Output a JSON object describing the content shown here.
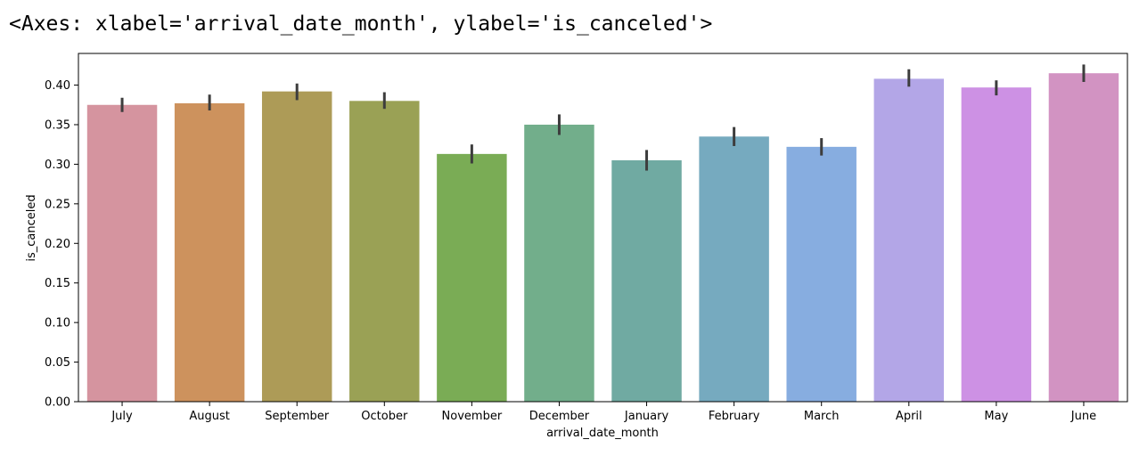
{
  "header": {
    "repr_text": "<Axes: xlabel='arrival_date_month', ylabel='is_canceled'>"
  },
  "chart_data": {
    "type": "bar",
    "title": "",
    "xlabel": "arrival_date_month",
    "ylabel": "is_canceled",
    "ylim": [
      0,
      0.44
    ],
    "yticks": [
      "0.00",
      "0.05",
      "0.10",
      "0.15",
      "0.20",
      "0.25",
      "0.30",
      "0.35",
      "0.40"
    ],
    "grid": false,
    "categories": [
      "July",
      "August",
      "September",
      "October",
      "November",
      "December",
      "January",
      "February",
      "March",
      "April",
      "May",
      "June"
    ],
    "values": [
      0.375,
      0.377,
      0.392,
      0.38,
      0.313,
      0.35,
      0.305,
      0.335,
      0.322,
      0.408,
      0.397,
      0.415
    ],
    "ci_low": [
      0.366,
      0.368,
      0.381,
      0.37,
      0.301,
      0.337,
      0.292,
      0.323,
      0.311,
      0.398,
      0.387,
      0.404
    ],
    "ci_high": [
      0.384,
      0.388,
      0.402,
      0.391,
      0.325,
      0.363,
      0.318,
      0.347,
      0.333,
      0.42,
      0.406,
      0.426
    ],
    "colors": [
      "#d5949f",
      "#cd925d",
      "#ad9b57",
      "#9aa155",
      "#7aac55",
      "#72ae8b",
      "#70aaa2",
      "#76aabf",
      "#87ade0",
      "#b3a6e7",
      "#cd91e4",
      "#d293c2"
    ]
  }
}
